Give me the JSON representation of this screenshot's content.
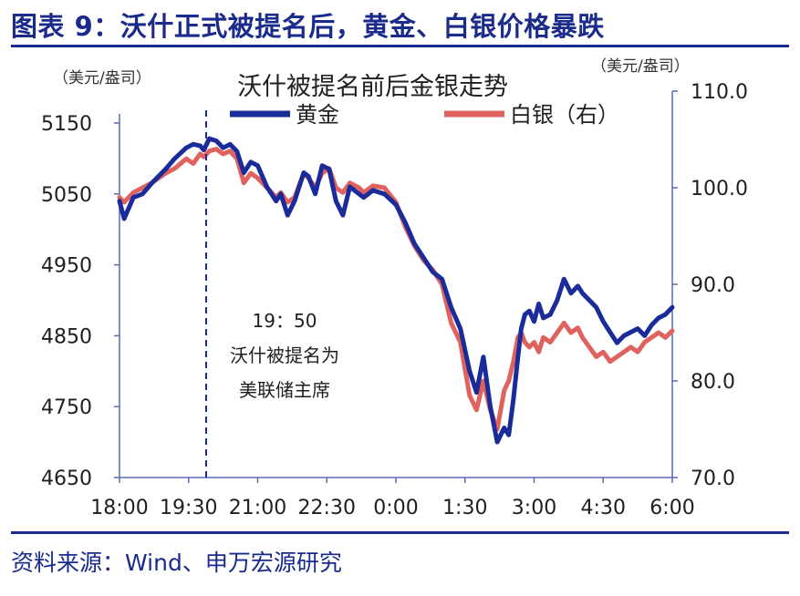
{
  "header": {
    "title": "图表 9：沃什正式被提名后，黄金、白银价格暴跌"
  },
  "footer": {
    "source": "资料来源：Wind、申万宏源研究"
  },
  "chart_data": {
    "type": "line",
    "title": "沃什被提名前后金银走势",
    "left_unit": "（美元/盎司）",
    "right_unit": "（美元/盎司）",
    "left_axis": {
      "ylim": [
        4650,
        5150
      ],
      "ticks": [
        4650,
        4750,
        4850,
        4950,
        5050,
        5150
      ],
      "tick_labels": [
        "4650",
        "4750",
        "4850",
        "4950",
        "5050",
        "5150"
      ]
    },
    "right_axis": {
      "ylim": [
        70.0,
        110.0
      ],
      "ticks": [
        70,
        80,
        90,
        100,
        110
      ],
      "tick_labels": [
        "70.0",
        "80.0",
        "90.0",
        "100.0",
        "110.0"
      ]
    },
    "x_axis": {
      "range_hours": [
        18,
        30
      ],
      "tick_labels": [
        "18:00",
        "19:30",
        "21:00",
        "22:30",
        "0:00",
        "1:30",
        "3:00",
        "4:30",
        "6:00"
      ]
    },
    "legend": {
      "position": "top-center",
      "items": [
        "黄金",
        "白银（右）"
      ]
    },
    "annotation": {
      "x": "19:50",
      "lines": [
        "19：50",
        "沃什被提名为",
        "美联储主席"
      ]
    },
    "colors": {
      "gold": "#1a2b9a",
      "silver": "#e0625e",
      "axis": "#5b6bb0"
    },
    "series": [
      {
        "name": "黄金",
        "axis": "left",
        "x": [
          18.0,
          18.1,
          18.3,
          18.5,
          18.7,
          19.0,
          19.2,
          19.45,
          19.6,
          19.75,
          19.83,
          19.95,
          20.1,
          20.25,
          20.4,
          20.55,
          20.7,
          20.85,
          21.0,
          21.2,
          21.4,
          21.5,
          21.65,
          21.8,
          22.0,
          22.1,
          22.25,
          22.4,
          22.55,
          22.7,
          22.85,
          23.0,
          23.2,
          23.3,
          23.5,
          23.75,
          24.0,
          24.2,
          24.4,
          24.6,
          24.8,
          25.0,
          25.2,
          25.4,
          25.6,
          25.75,
          25.9,
          26.05,
          26.2,
          26.35,
          26.45,
          26.55,
          26.65,
          26.72,
          26.8,
          26.9,
          27.0,
          27.1,
          27.2,
          27.35,
          27.5,
          27.65,
          27.8,
          27.95,
          28.05,
          28.2,
          28.35,
          28.5,
          28.65,
          28.8,
          28.95,
          29.1,
          29.25,
          29.4,
          29.55,
          29.7,
          29.85,
          30.0
        ],
        "values": [
          5040,
          5015,
          5045,
          5050,
          5065,
          5085,
          5100,
          5115,
          5120,
          5118,
          5112,
          5128,
          5125,
          5115,
          5120,
          5110,
          5080,
          5095,
          5090,
          5060,
          5040,
          5050,
          5020,
          5040,
          5080,
          5075,
          5050,
          5090,
          5085,
          5040,
          5020,
          5060,
          5050,
          5045,
          5055,
          5050,
          5035,
          5010,
          4980,
          4960,
          4940,
          4930,
          4890,
          4860,
          4800,
          4770,
          4820,
          4750,
          4700,
          4720,
          4710,
          4760,
          4820,
          4860,
          4880,
          4885,
          4870,
          4895,
          4875,
          4880,
          4900,
          4930,
          4910,
          4920,
          4910,
          4900,
          4890,
          4870,
          4855,
          4840,
          4850,
          4855,
          4860,
          4850,
          4865,
          4875,
          4880,
          4890
        ]
      },
      {
        "name": "白银（右）",
        "axis": "right",
        "x": [
          18.0,
          18.1,
          18.3,
          18.5,
          18.7,
          19.0,
          19.2,
          19.45,
          19.6,
          19.75,
          19.83,
          19.95,
          20.1,
          20.25,
          20.4,
          20.55,
          20.7,
          20.85,
          21.0,
          21.2,
          21.4,
          21.5,
          21.65,
          21.8,
          22.0,
          22.1,
          22.25,
          22.4,
          22.55,
          22.7,
          22.85,
          23.0,
          23.2,
          23.3,
          23.5,
          23.75,
          24.0,
          24.2,
          24.4,
          24.6,
          24.8,
          25.0,
          25.2,
          25.4,
          25.6,
          25.75,
          25.9,
          26.05,
          26.2,
          26.35,
          26.45,
          26.55,
          26.65,
          26.72,
          26.8,
          26.9,
          27.0,
          27.1,
          27.2,
          27.35,
          27.5,
          27.65,
          27.8,
          27.95,
          28.05,
          28.2,
          28.35,
          28.5,
          28.65,
          28.8,
          28.95,
          29.1,
          29.25,
          29.4,
          29.55,
          29.7,
          29.85,
          30.0
        ],
        "values": [
          99.0,
          98.5,
          99.5,
          100.0,
          100.5,
          101.5,
          102.0,
          103.0,
          102.5,
          103.5,
          103.2,
          103.8,
          104.0,
          103.5,
          103.8,
          103.0,
          100.5,
          101.5,
          101.0,
          100.0,
          99.0,
          99.5,
          98.5,
          99.0,
          101.5,
          101.0,
          100.0,
          101.5,
          102.0,
          100.0,
          99.5,
          100.5,
          100.0,
          99.5,
          100.2,
          100.0,
          98.5,
          96.0,
          94.0,
          92.5,
          91.5,
          90.0,
          86.0,
          84.0,
          78.5,
          77.0,
          80.0,
          77.0,
          75.0,
          79.0,
          80.0,
          82.0,
          84.5,
          85.0,
          84.0,
          83.5,
          84.0,
          83.0,
          84.5,
          84.0,
          85.0,
          86.0,
          85.0,
          85.5,
          84.5,
          83.5,
          82.5,
          83.0,
          82.0,
          82.5,
          83.0,
          83.5,
          83.0,
          84.0,
          84.5,
          85.0,
          84.5,
          85.2
        ]
      }
    ]
  }
}
